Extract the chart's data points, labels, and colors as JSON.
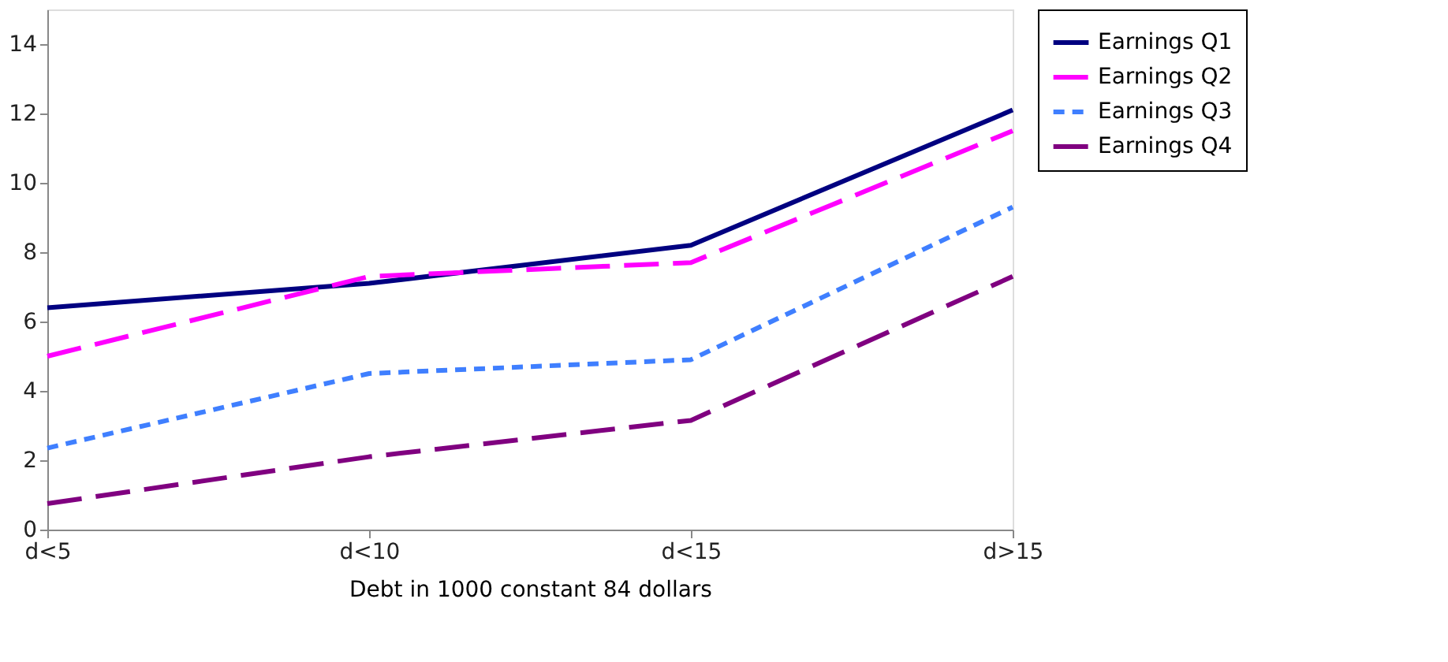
{
  "chart_data": {
    "type": "line",
    "xlabel": "Debt in 1000 constant 84 dollars",
    "categories": [
      "d<5",
      "d<10",
      "d<15",
      "d>15"
    ],
    "series": [
      {
        "name": "Earnings Q1",
        "color": "#000080",
        "line_style": "solid",
        "values": [
          6.4,
          7.1,
          8.2,
          12.1
        ]
      },
      {
        "name": "Earnings Q2",
        "color": "#ff00ff",
        "line_style": "dashed",
        "values": [
          5.0,
          7.3,
          7.7,
          11.5
        ]
      },
      {
        "name": "Earnings Q3",
        "color": "#3f7fff",
        "line_style": "dotted",
        "values": [
          2.35,
          4.5,
          4.9,
          9.3
        ]
      },
      {
        "name": "Earnings Q4",
        "color": "#800080",
        "line_style": "dashed",
        "values": [
          0.75,
          2.1,
          3.15,
          7.3
        ]
      }
    ],
    "ylim": [
      0,
      15
    ],
    "yticks": [
      0,
      2,
      4,
      6,
      8,
      10,
      12,
      14
    ],
    "grid": false,
    "legend": "right",
    "marker": "none"
  }
}
